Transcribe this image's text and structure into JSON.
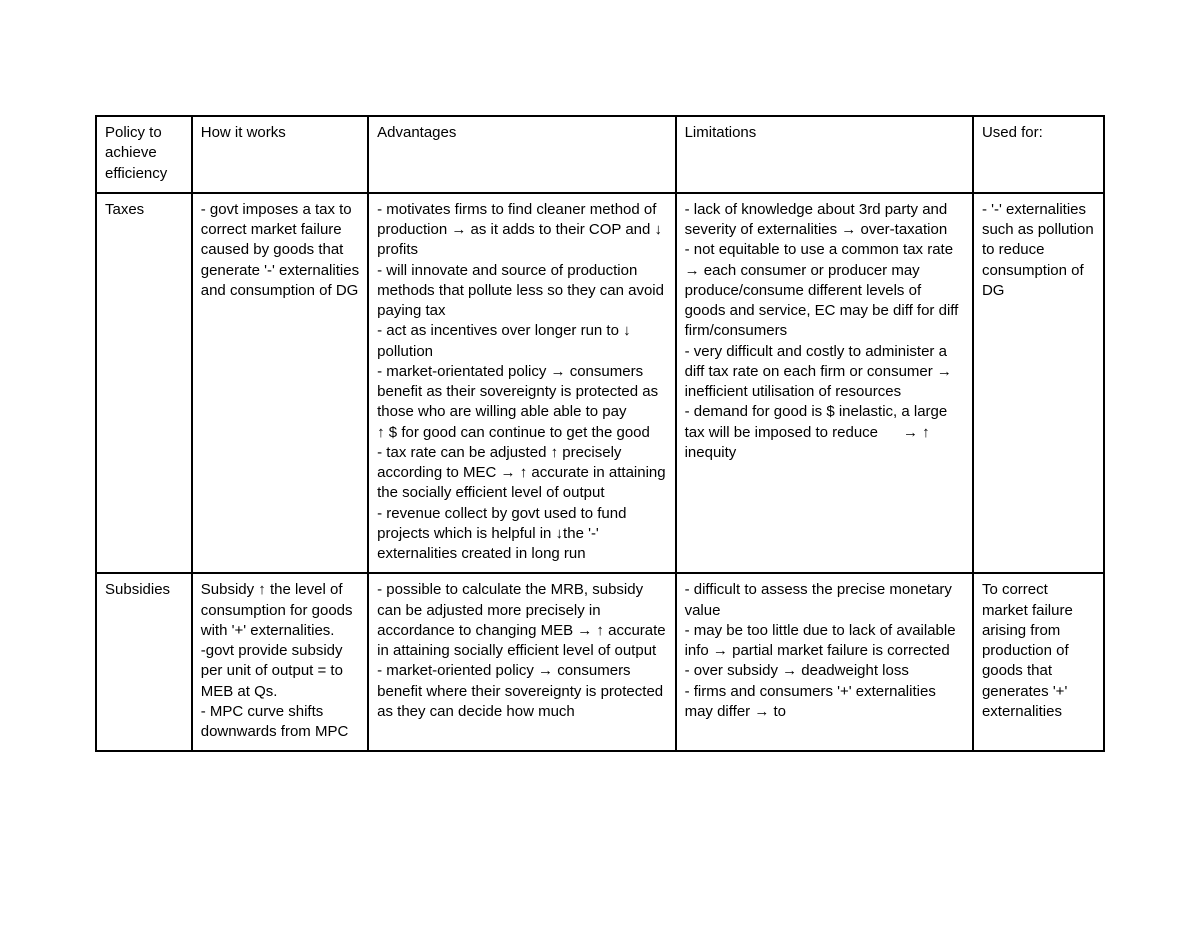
{
  "table": {
    "type": "table",
    "border_color": "#000000",
    "background_color": "#ffffff",
    "text_color": "#000000",
    "font_family": "Arial",
    "font_size_pt": 11,
    "line_height": 1.35,
    "column_widths_percent": [
      9.5,
      17.5,
      30.5,
      29.5,
      13
    ],
    "headers": [
      "Policy to achieve efficiency",
      "How it works",
      "Advantages",
      "Limitations",
      "Used for:"
    ],
    "rows": [
      {
        "policy": "Taxes",
        "how": "- govt imposes a tax to correct market failure caused by goods that generate '-' externalities and consumption of DG",
        "advantages": "- motivates firms to find cleaner method of production → as it adds to their COP and ↓ profits\n- will innovate and source of production methods that pollute less so they can avoid paying tax\n- act as incentives over longer run to ↓ pollution\n- market-orientated policy → consumers benefit as their sovereignty is protected as those who are willing able able to pay\n↑ $ for good can continue to get the good\n- tax rate can be adjusted ↑ precisely according to MEC → ↑ accurate in attaining the socially efficient level of output\n- revenue collect by govt used to fund projects which is helpful in ↓the '-' externalities created in long run",
        "limitations": "- lack of knowledge about 3rd party and severity of externalities → over-taxation\n- not equitable to use a common tax rate → each consumer or producer may produce/consume different levels of goods and service, EC may be diff for diff firm/consumers\n- very difficult and costly to administer a diff tax rate on each firm or consumer → inefficient utilisation of resources\n- demand for good is $ inelastic, a large tax will be imposed to reduce      → ↑ inequity",
        "used_for": "- '-' externalities such as pollution to reduce consumption of DG"
      },
      {
        "policy": "Subsidies",
        "how": "Subsidy ↑ the level of consumption for goods with '+' externalities.\n-govt provide subsidy per unit of output = to MEB at Qs.\n- MPC curve shifts downwards from MPC",
        "advantages": "- possible to calculate the MRB, subsidy can be adjusted more precisely in accordance to changing MEB → ↑ accurate in attaining socially efficient level of output\n- market-oriented policy → consumers benefit where their sovereignty is protected as they can decide how much",
        "limitations": "- difficult to assess the precise monetary value\n- may be too little due to lack of available info → partial market failure is corrected\n- over subsidy → deadweight loss\n- firms and consumers '+' externalities may differ → to",
        "used_for": "To correct market failure arising from production of goods that generates '+' externalities"
      }
    ]
  }
}
